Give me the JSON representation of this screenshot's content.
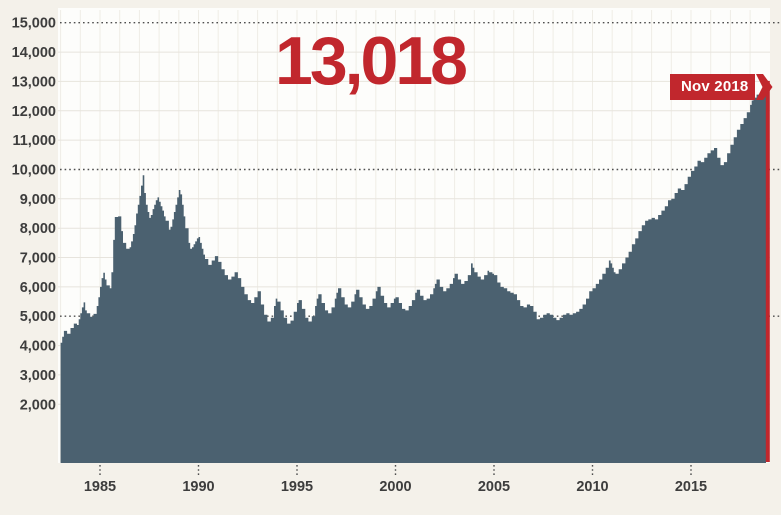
{
  "colors": {
    "background": "#f4f1ea",
    "plot_background": "#fdfdfb",
    "area_fill": "#4b6170",
    "accent_red": "#c1272d",
    "grid_horizontal": "#e7e4dd",
    "grid_vertical": "#efede6",
    "dotted_line": "#4d4d4d",
    "axis_text": "#3d3d3d",
    "flag_text": "#ffffff"
  },
  "chart_data": {
    "type": "area",
    "headline_value": "13,018",
    "flag_label": "Nov 2018",
    "x_start": 1983.0,
    "x_end": 2018.87,
    "ylim": [
      0,
      15000
    ],
    "grid": "on",
    "y_axis": {
      "ticks": [
        {
          "label": "15,000",
          "value": 15000,
          "dotted": true
        },
        {
          "label": "14,000",
          "value": 14000,
          "dotted": false
        },
        {
          "label": "13,000",
          "value": 13000,
          "dotted": false
        },
        {
          "label": "12,000",
          "value": 12000,
          "dotted": false
        },
        {
          "label": "11,000",
          "value": 11000,
          "dotted": false
        },
        {
          "label": "10,000",
          "value": 10000,
          "dotted": true
        },
        {
          "label": "9,000",
          "value": 9000,
          "dotted": false
        },
        {
          "label": "8,000",
          "value": 8000,
          "dotted": false
        },
        {
          "label": "7,000",
          "value": 7000,
          "dotted": false
        },
        {
          "label": "6,000",
          "value": 6000,
          "dotted": false
        },
        {
          "label": "5,000",
          "value": 5000,
          "dotted": true
        },
        {
          "label": "4,000",
          "value": 4000,
          "dotted": false
        },
        {
          "label": "3,000",
          "value": 3000,
          "dotted": false
        },
        {
          "label": "2,000",
          "value": 2000,
          "dotted": false
        }
      ]
    },
    "x_axis": {
      "ticks": [
        {
          "label": "1985",
          "value": 1985
        },
        {
          "label": "1990",
          "value": 1990
        },
        {
          "label": "1995",
          "value": 1995
        },
        {
          "label": "2000",
          "value": 2000
        },
        {
          "label": "2005",
          "value": 2005
        },
        {
          "label": "2010",
          "value": 2010
        },
        {
          "label": "2015",
          "value": 2015
        }
      ]
    },
    "series": [
      [
        1983.0,
        4100
      ],
      [
        1983.08,
        4300
      ],
      [
        1983.17,
        4500
      ],
      [
        1983.33,
        4400
      ],
      [
        1983.5,
        4600
      ],
      [
        1983.67,
        4750
      ],
      [
        1983.83,
        4700
      ],
      [
        1983.92,
        4900
      ],
      [
        1984.0,
        5100
      ],
      [
        1984.08,
        5300
      ],
      [
        1984.17,
        5470
      ],
      [
        1984.25,
        5200
      ],
      [
        1984.33,
        5100
      ],
      [
        1984.5,
        4980
      ],
      [
        1984.67,
        5080
      ],
      [
        1984.83,
        5350
      ],
      [
        1984.92,
        5650
      ],
      [
        1985.0,
        6000
      ],
      [
        1985.08,
        6300
      ],
      [
        1985.17,
        6480
      ],
      [
        1985.25,
        6250
      ],
      [
        1985.33,
        6050
      ],
      [
        1985.5,
        5950
      ],
      [
        1985.58,
        6500
      ],
      [
        1985.67,
        7600
      ],
      [
        1985.75,
        8380
      ],
      [
        1985.92,
        8400
      ],
      [
        1986.08,
        7900
      ],
      [
        1986.17,
        7500
      ],
      [
        1986.33,
        7300
      ],
      [
        1986.5,
        7350
      ],
      [
        1986.58,
        7550
      ],
      [
        1986.67,
        7800
      ],
      [
        1986.75,
        8100
      ],
      [
        1986.83,
        8500
      ],
      [
        1986.92,
        8800
      ],
      [
        1987.0,
        9100
      ],
      [
        1987.08,
        9450
      ],
      [
        1987.17,
        9800
      ],
      [
        1987.25,
        9200
      ],
      [
        1987.33,
        8800
      ],
      [
        1987.42,
        8550
      ],
      [
        1987.5,
        8350
      ],
      [
        1987.58,
        8450
      ],
      [
        1987.67,
        8650
      ],
      [
        1987.75,
        8800
      ],
      [
        1987.83,
        8950
      ],
      [
        1987.92,
        9050
      ],
      [
        1988.0,
        8900
      ],
      [
        1988.08,
        8750
      ],
      [
        1988.17,
        8600
      ],
      [
        1988.25,
        8400
      ],
      [
        1988.33,
        8250
      ],
      [
        1988.5,
        7950
      ],
      [
        1988.58,
        8050
      ],
      [
        1988.67,
        8300
      ],
      [
        1988.75,
        8550
      ],
      [
        1988.83,
        8800
      ],
      [
        1988.92,
        9050
      ],
      [
        1989.0,
        9300
      ],
      [
        1989.08,
        9150
      ],
      [
        1989.17,
        8800
      ],
      [
        1989.25,
        8400
      ],
      [
        1989.33,
        8000
      ],
      [
        1989.5,
        7500
      ],
      [
        1989.58,
        7300
      ],
      [
        1989.67,
        7350
      ],
      [
        1989.75,
        7450
      ],
      [
        1989.83,
        7550
      ],
      [
        1989.92,
        7650
      ],
      [
        1990.0,
        7700
      ],
      [
        1990.08,
        7500
      ],
      [
        1990.17,
        7300
      ],
      [
        1990.25,
        7100
      ],
      [
        1990.33,
        6950
      ],
      [
        1990.5,
        6750
      ],
      [
        1990.67,
        6900
      ],
      [
        1990.83,
        7050
      ],
      [
        1991.0,
        6850
      ],
      [
        1991.17,
        6600
      ],
      [
        1991.33,
        6400
      ],
      [
        1991.5,
        6250
      ],
      [
        1991.67,
        6350
      ],
      [
        1991.83,
        6500
      ],
      [
        1992.0,
        6300
      ],
      [
        1992.17,
        6000
      ],
      [
        1992.33,
        5750
      ],
      [
        1992.5,
        5550
      ],
      [
        1992.67,
        5450
      ],
      [
        1992.83,
        5650
      ],
      [
        1993.0,
        5850
      ],
      [
        1993.17,
        5400
      ],
      [
        1993.33,
        5050
      ],
      [
        1993.5,
        4820
      ],
      [
        1993.67,
        4950
      ],
      [
        1993.83,
        5350
      ],
      [
        1993.92,
        5600
      ],
      [
        1994.0,
        5500
      ],
      [
        1994.17,
        5200
      ],
      [
        1994.33,
        4950
      ],
      [
        1994.5,
        4750
      ],
      [
        1994.67,
        4850
      ],
      [
        1994.83,
        5150
      ],
      [
        1995.0,
        5450
      ],
      [
        1995.08,
        5550
      ],
      [
        1995.25,
        5250
      ],
      [
        1995.42,
        4950
      ],
      [
        1995.58,
        4820
      ],
      [
        1995.75,
        5000
      ],
      [
        1995.92,
        5350
      ],
      [
        1996.0,
        5600
      ],
      [
        1996.08,
        5750
      ],
      [
        1996.25,
        5450
      ],
      [
        1996.42,
        5200
      ],
      [
        1996.58,
        5100
      ],
      [
        1996.75,
        5300
      ],
      [
        1996.92,
        5600
      ],
      [
        1997.0,
        5800
      ],
      [
        1997.08,
        5950
      ],
      [
        1997.25,
        5650
      ],
      [
        1997.42,
        5400
      ],
      [
        1997.58,
        5300
      ],
      [
        1997.75,
        5500
      ],
      [
        1997.92,
        5750
      ],
      [
        1998.0,
        5900
      ],
      [
        1998.17,
        5650
      ],
      [
        1998.33,
        5400
      ],
      [
        1998.5,
        5250
      ],
      [
        1998.67,
        5350
      ],
      [
        1998.83,
        5600
      ],
      [
        1999.0,
        5850
      ],
      [
        1999.08,
        6000
      ],
      [
        1999.25,
        5700
      ],
      [
        1999.42,
        5450
      ],
      [
        1999.58,
        5300
      ],
      [
        1999.75,
        5450
      ],
      [
        1999.92,
        5600
      ],
      [
        2000.0,
        5650
      ],
      [
        2000.17,
        5450
      ],
      [
        2000.33,
        5250
      ],
      [
        2000.5,
        5200
      ],
      [
        2000.67,
        5350
      ],
      [
        2000.83,
        5550
      ],
      [
        2001.0,
        5800
      ],
      [
        2001.08,
        5900
      ],
      [
        2001.25,
        5700
      ],
      [
        2001.42,
        5550
      ],
      [
        2001.58,
        5600
      ],
      [
        2001.75,
        5750
      ],
      [
        2001.92,
        5950
      ],
      [
        2002.0,
        6100
      ],
      [
        2002.08,
        6250
      ],
      [
        2002.25,
        6000
      ],
      [
        2002.42,
        5850
      ],
      [
        2002.58,
        5950
      ],
      [
        2002.75,
        6100
      ],
      [
        2002.92,
        6300
      ],
      [
        2003.0,
        6450
      ],
      [
        2003.17,
        6250
      ],
      [
        2003.33,
        6100
      ],
      [
        2003.5,
        6200
      ],
      [
        2003.67,
        6400
      ],
      [
        2003.83,
        6800
      ],
      [
        2003.92,
        6650
      ],
      [
        2004.0,
        6500
      ],
      [
        2004.17,
        6350
      ],
      [
        2004.33,
        6250
      ],
      [
        2004.5,
        6400
      ],
      [
        2004.67,
        6550
      ],
      [
        2004.75,
        6500
      ],
      [
        2004.92,
        6450
      ],
      [
        2005.0,
        6400
      ],
      [
        2005.17,
        6150
      ],
      [
        2005.33,
        6000
      ],
      [
        2005.5,
        5950
      ],
      [
        2005.67,
        5850
      ],
      [
        2005.83,
        5800
      ],
      [
        2006.0,
        5750
      ],
      [
        2006.17,
        5550
      ],
      [
        2006.33,
        5350
      ],
      [
        2006.5,
        5300
      ],
      [
        2006.67,
        5400
      ],
      [
        2006.83,
        5350
      ],
      [
        2007.0,
        5150
      ],
      [
        2007.17,
        4900
      ],
      [
        2007.33,
        4950
      ],
      [
        2007.5,
        5050
      ],
      [
        2007.67,
        5100
      ],
      [
        2007.83,
        5050
      ],
      [
        2008.0,
        4950
      ],
      [
        2008.17,
        4870
      ],
      [
        2008.33,
        4950
      ],
      [
        2008.5,
        5050
      ],
      [
        2008.67,
        5100
      ],
      [
        2008.83,
        5050
      ],
      [
        2009.0,
        5100
      ],
      [
        2009.17,
        5150
      ],
      [
        2009.33,
        5250
      ],
      [
        2009.5,
        5400
      ],
      [
        2009.67,
        5600
      ],
      [
        2009.83,
        5850
      ],
      [
        2010.0,
        5950
      ],
      [
        2010.17,
        6100
      ],
      [
        2010.33,
        6250
      ],
      [
        2010.5,
        6450
      ],
      [
        2010.67,
        6650
      ],
      [
        2010.83,
        6900
      ],
      [
        2010.92,
        6800
      ],
      [
        2011.0,
        6650
      ],
      [
        2011.08,
        6500
      ],
      [
        2011.17,
        6450
      ],
      [
        2011.33,
        6600
      ],
      [
        2011.5,
        6800
      ],
      [
        2011.67,
        7000
      ],
      [
        2011.83,
        7200
      ],
      [
        2012.0,
        7450
      ],
      [
        2012.17,
        7650
      ],
      [
        2012.33,
        7900
      ],
      [
        2012.5,
        8100
      ],
      [
        2012.67,
        8250
      ],
      [
        2012.83,
        8300
      ],
      [
        2013.0,
        8350
      ],
      [
        2013.17,
        8300
      ],
      [
        2013.33,
        8450
      ],
      [
        2013.5,
        8600
      ],
      [
        2013.67,
        8750
      ],
      [
        2013.83,
        8950
      ],
      [
        2014.0,
        9000
      ],
      [
        2014.17,
        9200
      ],
      [
        2014.33,
        9350
      ],
      [
        2014.5,
        9300
      ],
      [
        2014.67,
        9500
      ],
      [
        2014.83,
        9750
      ],
      [
        2015.0,
        9950
      ],
      [
        2015.17,
        10100
      ],
      [
        2015.33,
        10300
      ],
      [
        2015.5,
        10250
      ],
      [
        2015.67,
        10400
      ],
      [
        2015.83,
        10550
      ],
      [
        2016.0,
        10650
      ],
      [
        2016.17,
        10730
      ],
      [
        2016.33,
        10400
      ],
      [
        2016.5,
        10150
      ],
      [
        2016.67,
        10250
      ],
      [
        2016.83,
        10550
      ],
      [
        2017.0,
        10840
      ],
      [
        2017.17,
        11100
      ],
      [
        2017.33,
        11350
      ],
      [
        2017.5,
        11550
      ],
      [
        2017.67,
        11750
      ],
      [
        2017.83,
        11950
      ],
      [
        2018.0,
        12200
      ],
      [
        2018.08,
        12350
      ],
      [
        2018.17,
        12450
      ],
      [
        2018.33,
        12550
      ],
      [
        2018.5,
        12600
      ],
      [
        2018.58,
        12500
      ],
      [
        2018.67,
        12700
      ],
      [
        2018.75,
        12850
      ],
      [
        2018.87,
        13018
      ]
    ]
  }
}
